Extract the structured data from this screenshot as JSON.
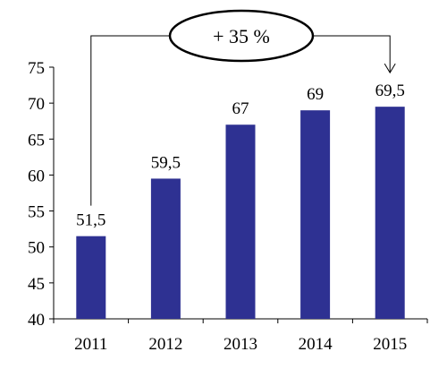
{
  "chart_data": {
    "type": "bar",
    "categories": [
      "2011",
      "2012",
      "2013",
      "2014",
      "2015"
    ],
    "values": [
      51.5,
      59.5,
      67,
      69,
      69.5
    ],
    "data_labels": [
      "51,5",
      "59,5",
      "67",
      "69",
      "69,5"
    ],
    "title": "",
    "xlabel": "",
    "ylabel": "",
    "ylim": [
      40,
      75
    ],
    "yticks": [
      "40",
      "45",
      "50",
      "55",
      "60",
      "65",
      "70",
      "75"
    ],
    "grid": false,
    "legend": "none",
    "bar_color": "#2e3192",
    "annotation": {
      "text": "+ 35 %",
      "from_category": "2011",
      "to_category": "2015"
    }
  }
}
